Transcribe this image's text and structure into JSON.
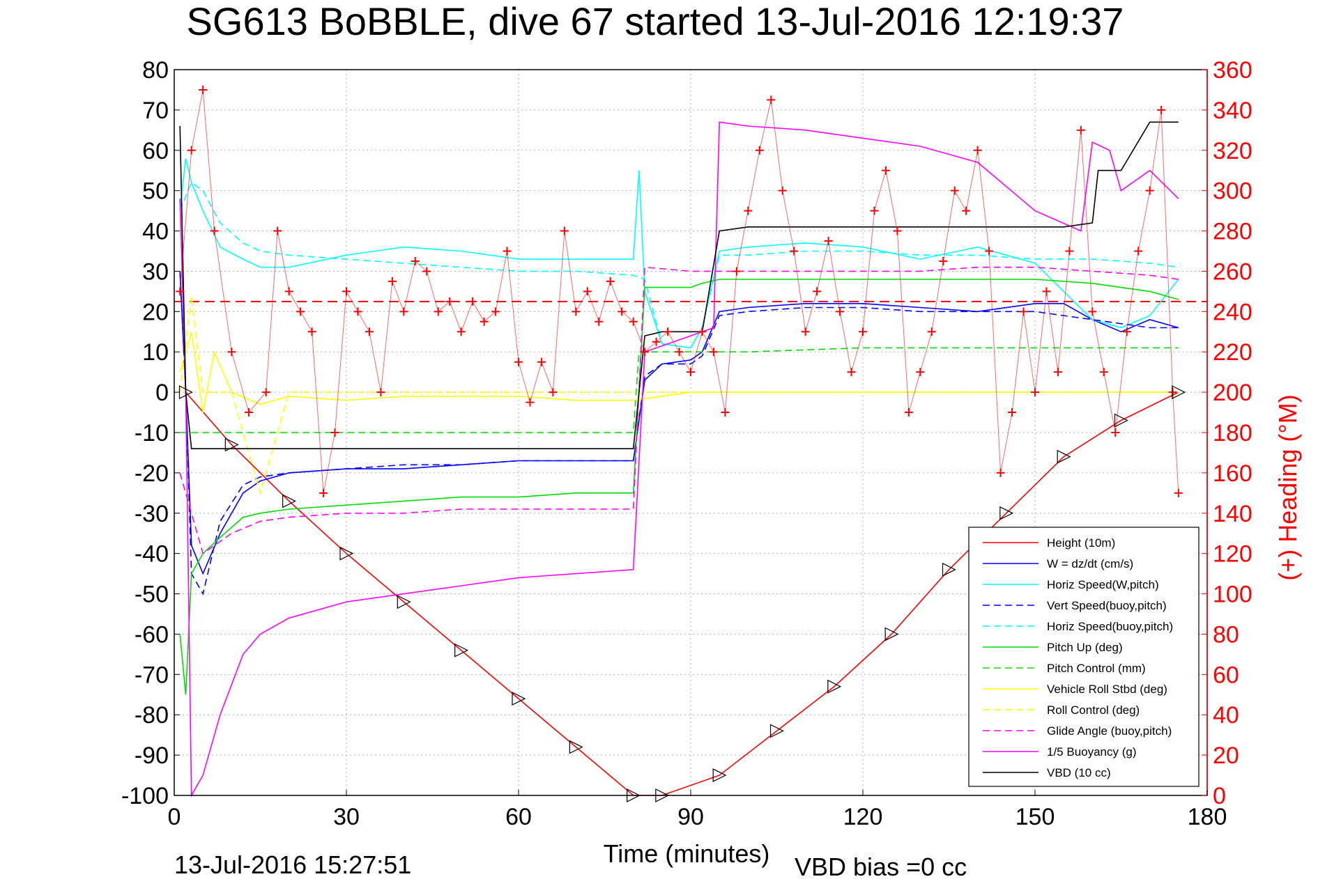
{
  "chart_data": {
    "type": "line",
    "title": "SG613 BoBBLE, dive 67 started 13-Jul-2016 12:19:37",
    "xlabel": "Time (minutes)",
    "ylabel_right": "(+) Heading (°M)",
    "xlim": [
      0,
      180
    ],
    "ylim_left": [
      -100,
      80
    ],
    "ylim_right": [
      0,
      360
    ],
    "x_ticks": [
      0,
      30,
      60,
      90,
      120,
      150,
      180
    ],
    "y_ticks_left": [
      80,
      70,
      60,
      50,
      40,
      30,
      20,
      10,
      0,
      -10,
      -20,
      -30,
      -40,
      -50,
      -60,
      -70,
      -80,
      -90,
      -100
    ],
    "y_ticks_right": [
      360,
      340,
      320,
      300,
      280,
      260,
      240,
      220,
      200,
      180,
      160,
      140,
      120,
      100,
      80,
      60,
      40,
      20,
      0
    ],
    "grid": true,
    "footer_left": "13-Jul-2016 15:27:51",
    "footer_right": "VBD bias =0 cc",
    "legend_position": "bottom-right",
    "series": [
      {
        "name": "Height (10m)",
        "color": "#ff0000",
        "style": "solid",
        "x": [
          2,
          10,
          20,
          30,
          40,
          50,
          60,
          70,
          80,
          85,
          95,
          105,
          115,
          125,
          135,
          145,
          155,
          165,
          175
        ],
        "y": [
          0,
          -13,
          -27,
          -40,
          -52,
          -64,
          -76,
          -88,
          -100,
          -100,
          -95,
          -84,
          -73,
          -60,
          -44,
          -30,
          -16,
          -7,
          0
        ]
      },
      {
        "name": "W = dz/dt (cm/s)",
        "color": "#0000ff",
        "style": "solid",
        "x": [
          1,
          2,
          3,
          5,
          8,
          12,
          15,
          20,
          30,
          40,
          50,
          60,
          70,
          80,
          82,
          85,
          90,
          92,
          95,
          100,
          110,
          120,
          130,
          140,
          150,
          155,
          160,
          165,
          170,
          175
        ],
        "y": [
          30,
          0,
          -38,
          -45,
          -35,
          -25,
          -22,
          -20,
          -19,
          -19,
          -18,
          -17,
          -17,
          -17,
          3,
          7,
          8,
          10,
          20,
          21,
          22,
          22,
          21,
          20,
          22,
          22,
          18,
          15,
          18,
          16
        ]
      },
      {
        "name": "Horiz Speed(W,pitch)",
        "color": "#00ffff",
        "style": "solid",
        "x": [
          1,
          2,
          3,
          5,
          8,
          12,
          15,
          20,
          30,
          40,
          50,
          60,
          70,
          80,
          81,
          82,
          85,
          90,
          92,
          95,
          100,
          110,
          120,
          130,
          140,
          150,
          155,
          160,
          165,
          170,
          175
        ],
        "y": [
          45,
          58,
          52,
          45,
          36,
          33,
          31,
          31,
          34,
          36,
          35,
          33,
          33,
          33,
          55,
          25,
          12,
          11,
          16,
          35,
          36,
          37,
          36,
          33,
          36,
          32,
          25,
          18,
          16,
          19,
          28
        ]
      },
      {
        "name": "Vert Speed(buoy,pitch)",
        "color": "#0000ff",
        "style": "dashed",
        "x": [
          1,
          2,
          3,
          5,
          8,
          12,
          15,
          20,
          30,
          40,
          50,
          60,
          70,
          80,
          82,
          85,
          90,
          92,
          95,
          100,
          110,
          120,
          130,
          140,
          150,
          160,
          170,
          175
        ],
        "y": [
          30,
          0,
          -45,
          -50,
          -32,
          -23,
          -21,
          -20,
          -19,
          -18,
          -18,
          -17,
          -17,
          -17,
          4,
          7,
          7,
          9,
          19,
          20,
          21,
          21,
          20,
          20,
          20,
          18,
          16,
          16
        ]
      },
      {
        "name": "Horiz Speed(buoy,pitch)",
        "color": "#00ffff",
        "style": "dashed",
        "x": [
          1,
          3,
          5,
          8,
          12,
          15,
          20,
          30,
          40,
          50,
          60,
          70,
          80,
          82,
          85,
          90,
          92,
          95,
          100,
          110,
          120,
          130,
          140,
          150,
          160,
          170,
          175
        ],
        "y": [
          45,
          52,
          50,
          42,
          37,
          35,
          34,
          33,
          32,
          31,
          30,
          30,
          29,
          28,
          12,
          11,
          16,
          34,
          34,
          35,
          35,
          34,
          34,
          33,
          33,
          32,
          31
        ]
      },
      {
        "name": "Pitch Up (deg)",
        "color": "#00dd00",
        "style": "solid",
        "x": [
          1,
          2,
          3,
          5,
          8,
          12,
          15,
          20,
          30,
          40,
          50,
          60,
          70,
          80,
          82,
          85,
          90,
          92,
          95,
          100,
          110,
          120,
          130,
          140,
          150,
          160,
          170,
          175
        ],
        "y": [
          -60,
          -75,
          -45,
          -40,
          -36,
          -31,
          -30,
          -29,
          -28,
          -27,
          -26,
          -26,
          -25,
          -25,
          26,
          26,
          26,
          27,
          28,
          28,
          28,
          28,
          28,
          28,
          28,
          27,
          25,
          23
        ]
      },
      {
        "name": "Pitch Control (mm)",
        "color": "#00dd00",
        "style": "dashed",
        "x": [
          1,
          5,
          10,
          20,
          40,
          60,
          80,
          81,
          90,
          100,
          120,
          140,
          160,
          175
        ],
        "y": [
          -10,
          -10,
          -10,
          -10,
          -10,
          -10,
          -10,
          10,
          10,
          10,
          11,
          11,
          11,
          11
        ]
      },
      {
        "name": "Vehicle Roll Stbd (deg)",
        "color": "#ffff00",
        "style": "solid",
        "x": [
          1,
          3,
          5,
          7,
          10,
          15,
          20,
          30,
          40,
          50,
          60,
          70,
          80,
          90,
          100,
          110,
          120,
          130,
          140,
          150,
          160,
          170,
          175
        ],
        "y": [
          5,
          15,
          -5,
          10,
          0,
          -3,
          -1,
          -2,
          -1,
          -1,
          -1,
          -2,
          -2,
          0,
          0,
          0,
          0,
          0,
          0,
          0,
          0,
          0,
          0
        ]
      },
      {
        "name": "Roll Control (deg)",
        "color": "#ffff00",
        "style": "dashed",
        "x": [
          1,
          3,
          5,
          10,
          15,
          20,
          30,
          40,
          50,
          60,
          80,
          90,
          100,
          120,
          140,
          160,
          175
        ],
        "y": [
          0,
          24,
          0,
          0,
          -25,
          0,
          0,
          0,
          0,
          0,
          0,
          0,
          0,
          0,
          0,
          0,
          0
        ]
      },
      {
        "name": "Glide Angle (buoy,pitch)",
        "color": "#ff00ff",
        "style": "dashed",
        "x": [
          1,
          5,
          10,
          15,
          20,
          30,
          40,
          50,
          60,
          70,
          80,
          82,
          90,
          100,
          110,
          120,
          130,
          140,
          150,
          160,
          170,
          175
        ],
        "y": [
          -20,
          -40,
          -35,
          -32,
          -31,
          -30,
          -30,
          -29,
          -29,
          -29,
          -29,
          31,
          30,
          30,
          30,
          30,
          30,
          31,
          31,
          30,
          29,
          28
        ]
      },
      {
        "name": "1/5 Buoyancy (g)",
        "color": "#ff00ff",
        "style": "solid",
        "x": [
          1,
          2,
          3,
          5,
          8,
          12,
          15,
          20,
          30,
          40,
          50,
          60,
          70,
          80,
          82,
          90,
          94,
          95,
          100,
          110,
          120,
          130,
          140,
          150,
          158,
          160,
          163,
          165,
          170,
          175
        ],
        "y": [
          48,
          0,
          -100,
          -95,
          -80,
          -65,
          -60,
          -56,
          -52,
          -50,
          -48,
          -46,
          -45,
          -44,
          10,
          14,
          16,
          67,
          66,
          65,
          63,
          61,
          57,
          45,
          40,
          62,
          60,
          50,
          55,
          48
        ]
      },
      {
        "name": "VBD (10 cc)",
        "color": "#000000",
        "style": "solid",
        "x": [
          1,
          2,
          3,
          5,
          10,
          20,
          40,
          60,
          80,
          82,
          85,
          90,
          92,
          95,
          100,
          120,
          140,
          155,
          160,
          161,
          165,
          170,
          175
        ],
        "y": [
          66,
          0,
          -14,
          -14,
          -14,
          -14,
          -14,
          -14,
          -14,
          14,
          15,
          15,
          15,
          40,
          41,
          41,
          41,
          41,
          42,
          55,
          55,
          67,
          67
        ]
      }
    ],
    "heading_series": {
      "name": "(+) Heading (°M)",
      "color": "#ff0000",
      "marker": "+",
      "x": [
        1,
        3,
        5,
        7,
        10,
        13,
        16,
        18,
        20,
        22,
        24,
        26,
        28,
        30,
        32,
        34,
        36,
        38,
        40,
        42,
        44,
        46,
        48,
        50,
        52,
        54,
        56,
        58,
        60,
        62,
        64,
        66,
        68,
        70,
        72,
        74,
        76,
        78,
        80,
        82,
        84,
        86,
        88,
        90,
        92,
        94,
        96,
        98,
        100,
        102,
        104,
        106,
        108,
        110,
        112,
        114,
        116,
        118,
        120,
        122,
        124,
        126,
        128,
        130,
        132,
        134,
        136,
        138,
        140,
        142,
        144,
        146,
        148,
        150,
        152,
        154,
        156,
        158,
        160,
        162,
        164,
        166,
        168,
        170,
        172,
        174,
        175
      ],
      "y": [
        250,
        320,
        350,
        280,
        220,
        190,
        200,
        280,
        250,
        240,
        230,
        150,
        180,
        250,
        240,
        230,
        200,
        255,
        240,
        265,
        260,
        240,
        245,
        230,
        245,
        235,
        240,
        270,
        215,
        195,
        215,
        200,
        280,
        240,
        250,
        235,
        255,
        240,
        235,
        220,
        225,
        230,
        220,
        210,
        230,
        220,
        190,
        260,
        290,
        320,
        345,
        300,
        270,
        230,
        250,
        275,
        240,
        210,
        230,
        290,
        310,
        280,
        190,
        210,
        230,
        265,
        300,
        290,
        320,
        270,
        160,
        190,
        240,
        200,
        250,
        210,
        270,
        330,
        240,
        210,
        180,
        230,
        270,
        300,
        340,
        200,
        150
      ]
    },
    "heading_reference": {
      "value": 245,
      "color": "#ff0000",
      "style": "dashed"
    },
    "dive_markers_y_ticks_note": ""
  }
}
